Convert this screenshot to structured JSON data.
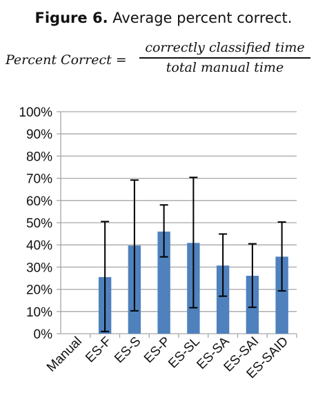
{
  "figure": {
    "label": "Figure 6.",
    "caption": "Average percent correct."
  },
  "formula": {
    "lhs": "Percent Correct",
    "equals": "=",
    "numerator": "correctly classified time",
    "denominator": "total manual time"
  },
  "chart_data": {
    "type": "bar",
    "categories": [
      "Manual",
      "ES-F",
      "ES-S",
      "ES-P",
      "ES-SL",
      "ES-SA",
      "ES-SAI",
      "ES-SAID"
    ],
    "series": [
      {
        "values": [
          0,
          25.5,
          39.7,
          46.0,
          40.9,
          30.7,
          26.1,
          34.7
        ],
        "error_low": [
          null,
          1.0,
          10.3,
          34.6,
          11.7,
          16.9,
          11.9,
          19.3
        ],
        "error_high": [
          null,
          50.5,
          69.2,
          58.0,
          70.4,
          44.9,
          40.5,
          50.3
        ],
        "color": "#4F81BD"
      }
    ],
    "y_ticks": [
      "0%",
      "10%",
      "20%",
      "30%",
      "40%",
      "50%",
      "60%",
      "70%",
      "80%",
      "90%",
      "100%"
    ],
    "ylim": [
      0,
      100
    ],
    "grid": true,
    "legend": "none",
    "error_bar_color": "#000000",
    "grid_color": "#A6A6A6"
  }
}
